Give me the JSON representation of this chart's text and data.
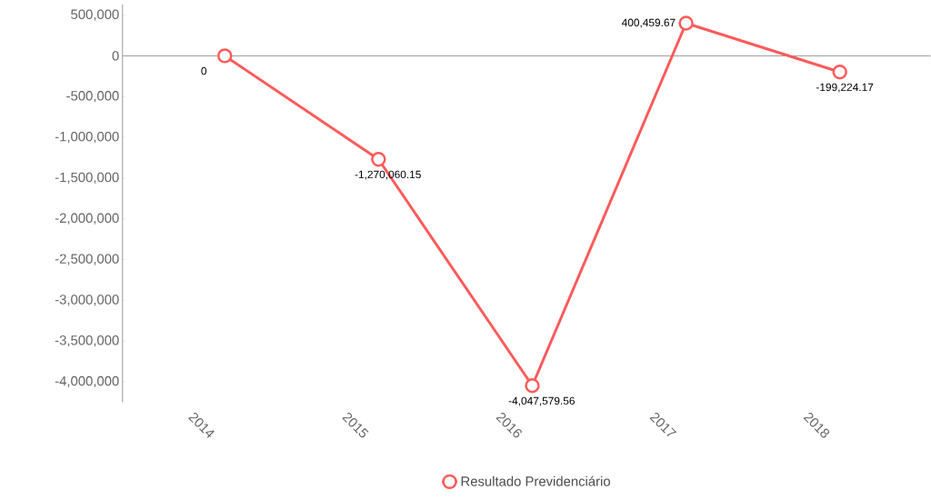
{
  "chart_data": {
    "type": "line",
    "categories": [
      "2014",
      "2015",
      "2016",
      "2017",
      "2018"
    ],
    "series": [
      {
        "name": "Resultado Previdenciário",
        "color": "#ff5a5a",
        "values": [
          0,
          -1270060.15,
          -4047579.56,
          400459.67,
          -199224.17
        ],
        "value_labels": [
          "0",
          "-1,270,060.15",
          "-4,047,579.56",
          "400,459.67",
          "-199,224.17"
        ]
      }
    ],
    "ylim": [
      -4250000,
      630000
    ],
    "yticks": [
      {
        "value": 500000,
        "label": "500,000"
      },
      {
        "value": 0,
        "label": "0"
      },
      {
        "value": -500000,
        "label": "-500,000"
      },
      {
        "value": -1000000,
        "label": "-1,000,000"
      },
      {
        "value": -1500000,
        "label": "-1,500,000"
      },
      {
        "value": -2000000,
        "label": "-2,000,000"
      },
      {
        "value": -2500000,
        "label": "-2,500,000"
      },
      {
        "value": -3000000,
        "label": "-3,000,000"
      },
      {
        "value": -3500000,
        "label": "-3,500,000"
      },
      {
        "value": -4000000,
        "label": "-4,000,000"
      }
    ],
    "ref_lines": [
      {
        "axis": "y",
        "value": 0,
        "color": "#999999"
      }
    ],
    "grid": false,
    "legend": "bottom",
    "marker": "circle",
    "line_style": "solid"
  }
}
